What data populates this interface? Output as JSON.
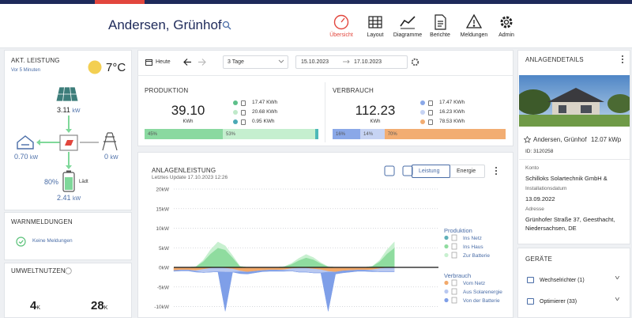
{
  "header": {
    "title": "Andersen, Grünhof",
    "nav": [
      "Übersicht",
      "Layout",
      "Diagramme",
      "Berichte",
      "Meldungen",
      "Admin"
    ],
    "active_nav": 0
  },
  "current_power": {
    "title": "AKT. LEISTUNG",
    "updated": "Vor 5 Minuten",
    "temperature": "7°C",
    "solar": {
      "value": "3.11",
      "unit": "kW"
    },
    "house": {
      "value": "0.70",
      "unit": "kW"
    },
    "grid": {
      "value": "0",
      "unit": "kW"
    },
    "battery": {
      "soc": "80%",
      "state": "Lädt",
      "value": "2.41",
      "unit": "kW"
    }
  },
  "warnings": {
    "title": "WARNMELDUNGEN",
    "status": "Keine Meldungen"
  },
  "environment": {
    "title": "UMWELTNUTZEN",
    "items": [
      {
        "value": "4",
        "unit": "K"
      },
      {
        "value": "28",
        "unit": "K"
      }
    ]
  },
  "toolbar": {
    "today": "Heute",
    "range_select": "3 Tage",
    "date_from": "15.10.2023",
    "date_to": "17.10.2023"
  },
  "production": {
    "title": "PRODUKTION",
    "total": "39.10",
    "unit": "KWh",
    "items": [
      {
        "value": "17.47 KWh",
        "color": "#5dc08a"
      },
      {
        "value": "20.68 KWh",
        "color": "#bfe9c9"
      },
      {
        "value": "0.95 KWh",
        "color": "#4aa9b5"
      }
    ],
    "bar": [
      {
        "value": 45,
        "label": "45%",
        "color": "#8ad9a0"
      },
      {
        "value": 53,
        "label": "53%",
        "color": "#c5efcf"
      },
      {
        "value": 2,
        "color": "#4db8b8"
      }
    ]
  },
  "consumption": {
    "title": "VERBRAUCH",
    "total": "112.23",
    "unit": "KWh",
    "items": [
      {
        "value": "17.47 KWh",
        "color": "#8aa8e8"
      },
      {
        "value": "16.23 KWh",
        "color": "#c6d3f3"
      },
      {
        "value": "78.53 KWh",
        "color": "#f2ad72"
      }
    ],
    "bar": [
      {
        "value": 16,
        "label": "16%",
        "color": "#8aa8e8"
      },
      {
        "value": 14,
        "label": "14%",
        "color": "#c6d3f3"
      },
      {
        "value": 70,
        "label": "70%",
        "color": "#f2ad72"
      }
    ]
  },
  "chart": {
    "type": "area",
    "title": "ANLAGENLEISTUNG",
    "subtitle": "Letztes Update 17.10.2023 12:26",
    "toggle": [
      "Leistung",
      "Energie"
    ],
    "xlim": [
      0,
      72
    ],
    "ylim": [
      -10,
      20
    ],
    "yticks": [
      {
        "value": 20,
        "label": "20kW"
      },
      {
        "value": 15,
        "label": "15kW"
      },
      {
        "value": 10,
        "label": "10kW"
      },
      {
        "value": 5,
        "label": "5kW"
      },
      {
        "value": 0,
        "label": "0kW"
      },
      {
        "value": -5,
        "label": "-5kW"
      },
      {
        "value": -10,
        "label": "-10kW"
      }
    ],
    "groups": [
      "Produktion",
      "Verbrauch"
    ],
    "x": [
      0,
      2,
      4,
      6,
      8,
      10,
      12,
      14,
      16,
      18,
      20,
      22,
      24,
      26,
      28,
      30,
      32,
      34,
      36,
      38,
      40,
      42,
      44,
      46,
      48,
      50,
      52,
      54,
      56,
      58,
      60
    ],
    "series": [
      {
        "name": "Ins Netz",
        "group": 0,
        "color": "#5fb0b8",
        "values": [
          0,
          0,
          0,
          0,
          0,
          0,
          0,
          0,
          0,
          0,
          0,
          0,
          0,
          0,
          0,
          0,
          0,
          0,
          0,
          0,
          0,
          0,
          0,
          0,
          0,
          0,
          0,
          0,
          0,
          0,
          0
        ]
      },
      {
        "name": "Ins Haus",
        "group": 0,
        "color": "#8fdc9f",
        "values": [
          0,
          0,
          0,
          0.2,
          1.5,
          3.5,
          5,
          4.5,
          2.5,
          0.3,
          0,
          0,
          0,
          0,
          0,
          0.2,
          0.8,
          1.8,
          2.5,
          2,
          1,
          0.2,
          0,
          0,
          0,
          0,
          0,
          0.3,
          1.5,
          3.5,
          5
        ]
      },
      {
        "name": "Zur Batterie",
        "group": 0,
        "color": "#c8f0d0",
        "values": [
          0,
          0,
          0,
          0,
          0.3,
          1,
          1.5,
          1,
          0.5,
          0,
          0,
          0,
          0,
          0,
          0,
          0,
          0.2,
          0.5,
          0.8,
          0.5,
          0.2,
          0,
          0,
          0,
          0,
          0,
          0,
          0,
          0.3,
          1,
          1.5
        ]
      },
      {
        "name": "Vom Netz",
        "group": 1,
        "color": "#f2a96a",
        "values": [
          -0.8,
          -0.7,
          -0.7,
          -0.8,
          -0.5,
          -0.2,
          -0.1,
          -0.2,
          -0.4,
          -0.9,
          -1.2,
          -1,
          -0.8,
          -0.7,
          -0.7,
          -0.6,
          -0.3,
          -0.2,
          -0.2,
          -0.4,
          -0.6,
          -1,
          -1.2,
          -0.9,
          -0.8,
          -0.7,
          -0.7,
          -0.6,
          -0.3,
          -0.1,
          -0.1
        ]
      },
      {
        "name": "Aus Solarenergie",
        "group": 1,
        "color": "#b9c8f0",
        "values": [
          0,
          0,
          0,
          -0.2,
          -0.8,
          -1,
          -1,
          -1,
          -0.8,
          -0.2,
          0,
          0,
          0,
          0,
          0,
          -0.2,
          -0.6,
          -1,
          -1,
          -1,
          -0.8,
          -0.2,
          0,
          0,
          0,
          0,
          0,
          -0.3,
          -0.8,
          -1,
          -1
        ]
      },
      {
        "name": "Von der Batterie",
        "group": 1,
        "color": "#7f9fe8",
        "values": [
          -0.2,
          -0.2,
          -0.2,
          -0.2,
          0,
          0,
          0,
          -10,
          0,
          -0.5,
          -0.5,
          -0.4,
          -0.3,
          -0.3,
          -0.3,
          -0.2,
          0,
          0,
          0,
          0,
          0,
          -10,
          -0.5,
          -0.5,
          -0.4,
          -0.3,
          -0.3,
          -0.2,
          0,
          0,
          0
        ]
      }
    ]
  },
  "plant": {
    "title": "ANLAGENDETAILS",
    "name": "Andersen, Grünhof",
    "capacity": "12.07 kWp",
    "id": "ID: 3120258",
    "fields": [
      {
        "label": "Konto",
        "lines": [
          "Schilloks Solartechnik GmbH &"
        ]
      },
      {
        "label": "Installationsdatum",
        "lines": [
          "13.09.2022"
        ]
      },
      {
        "label": "Adresse",
        "lines": [
          "Grünhofer Straße 37, Geesthacht,",
          "Niedersachsen, DE"
        ]
      }
    ]
  },
  "devices": {
    "title": "GERÄTE",
    "items": [
      "Wechselrichter (1)",
      "Optimierer (33)"
    ]
  }
}
